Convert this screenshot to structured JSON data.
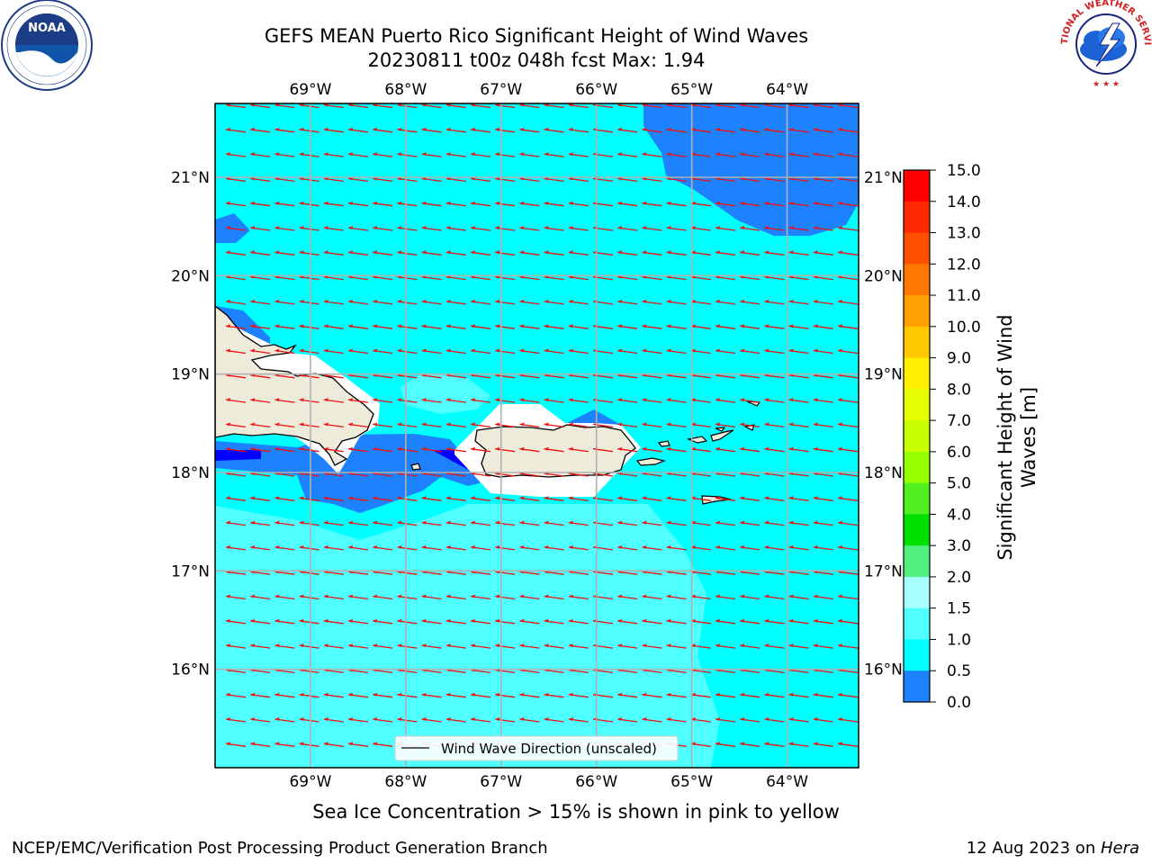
{
  "header": {
    "title": "GEFS MEAN Puerto Rico Significant Height of Wind Waves",
    "subtitle": "20230811 t00z 048h fcst   Max: 1.94"
  },
  "logos": {
    "left": "noaa-logo",
    "left_text": "NATIONAL OCEANIC AND ATMOSPHERIC ADMINISTRATION · U.S. DEPARTMENT OF COMMERCE",
    "left_badge": "NOAA",
    "right": "nws-logo",
    "right_text": "NATIONAL WEATHER SERVICE"
  },
  "map": {
    "lon_labels": [
      "69°W",
      "68°W",
      "67°W",
      "66°W",
      "65°W",
      "64°W"
    ],
    "lat_labels": [
      "21°N",
      "20°N",
      "19°N",
      "18°N",
      "17°N",
      "16°N"
    ],
    "lon_values": [
      -69,
      -68,
      -67,
      -66,
      -65,
      -64
    ],
    "lat_values": [
      21,
      20,
      19,
      18,
      17,
      16
    ],
    "lon_range": [
      -70,
      -63.25
    ],
    "lat_range": [
      15,
      21.75
    ],
    "legend_label": "Wind Wave Direction (unscaled)",
    "arrow_color": "#ee1111",
    "land_color": "#efebdb"
  },
  "colorbar": {
    "label_line1": "Significant Height of Wind",
    "label_line2": "Waves [m]",
    "ticks": [
      "15.0",
      "14.0",
      "13.0",
      "12.0",
      "11.0",
      "10.0",
      "9.0",
      "8.0",
      "7.0",
      "6.0",
      "5.0",
      "4.0",
      "3.0",
      "2.0",
      "1.5",
      "1.0",
      "0.5",
      "0.0"
    ],
    "colors": [
      "#ff0000",
      "#ff2800",
      "#ff5000",
      "#ff7800",
      "#ffa000",
      "#ffc800",
      "#fff000",
      "#e6ff00",
      "#c8ff00",
      "#96ff00",
      "#50f020",
      "#00e000",
      "#50f080",
      "#a8ffff",
      "#50ffff",
      "#00ffff",
      "#1e82ff",
      "#0000ff"
    ]
  },
  "chart_data": {
    "type": "heatmap",
    "title": "GEFS MEAN Puerto Rico Significant Height of Wind Waves",
    "subtitle": "20230811 t00z 048h fcst   Max: 1.94",
    "xlabel": "",
    "ylabel": "",
    "variable": "Significant Height of Wind Waves [m]",
    "contour_levels": [
      0.0,
      0.5,
      1.0,
      1.5,
      2.0,
      3.0,
      4.0,
      5.0,
      6.0,
      7.0,
      8.0,
      9.0,
      10.0,
      11.0,
      12.0,
      13.0,
      14.0,
      15.0
    ],
    "max_value": 1.94,
    "xlim": [
      -70,
      -63.25
    ],
    "ylim": [
      15,
      21.75
    ],
    "wave_direction": "toward west",
    "grid": true,
    "legend": "Wind Wave Direction (unscaled)"
  },
  "footer": {
    "caption": "Sea Ice Concentration > 15% is shown in pink to yellow",
    "credit": "NCEP/EMC/Verification Post Processing Product Generation Branch",
    "date": "12 Aug 2023 on ",
    "machine": "Hera"
  }
}
